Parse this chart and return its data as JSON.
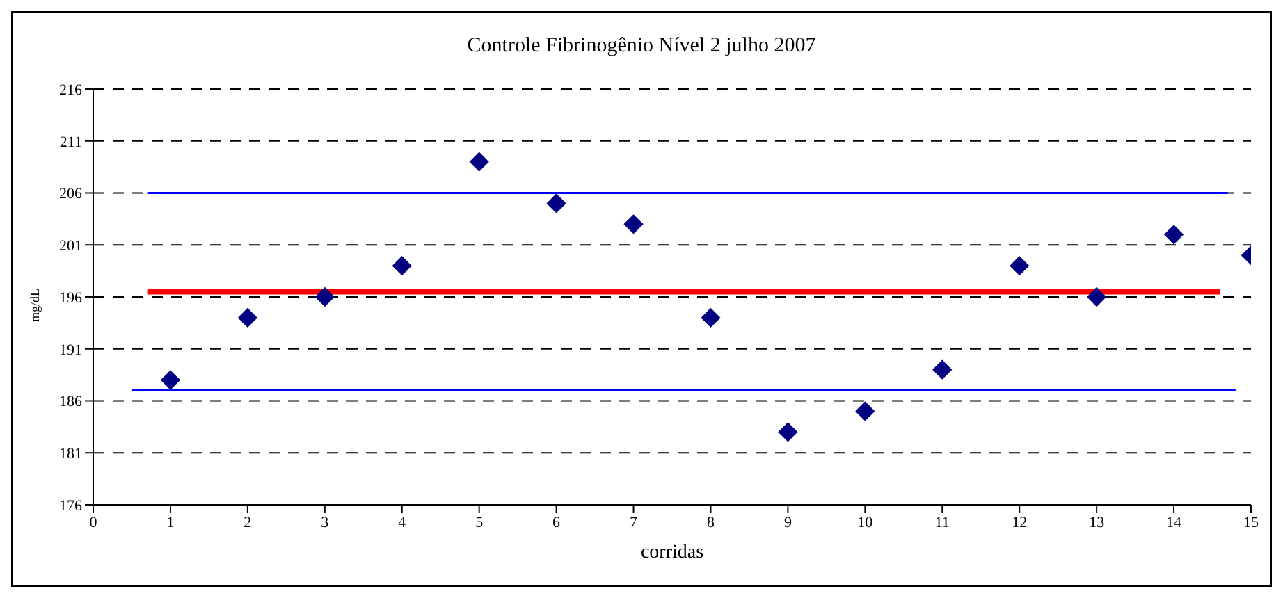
{
  "chart_data": {
    "type": "scatter",
    "title": "Controle Fibrinogênio Nível 2 julho 2007",
    "xlabel": "corridas",
    "ylabel": "mg/dL",
    "xlim": [
      0,
      15
    ],
    "xticks": [
      0,
      1,
      2,
      3,
      4,
      5,
      6,
      7,
      8,
      9,
      10,
      11,
      12,
      13,
      14,
      15
    ],
    "ylim": [
      176,
      216
    ],
    "yticks": [
      176,
      181,
      186,
      191,
      196,
      201,
      206,
      211,
      216
    ],
    "grid": "y",
    "marker": "diamond",
    "series": [
      {
        "color": "#000080",
        "x": [
          1,
          2,
          3,
          4,
          5,
          6,
          7,
          8,
          9,
          10,
          11,
          12,
          13,
          14,
          15
        ],
        "values": [
          188,
          194,
          196,
          199,
          209,
          205,
          203,
          194,
          183,
          185,
          189,
          199,
          196,
          202,
          200
        ]
      },
      {
        "type": "line",
        "color": "#ff0000",
        "marker": "none",
        "x": [
          0.7,
          14.6
        ],
        "values": [
          196.5,
          196.5
        ]
      },
      {
        "type": "line",
        "color": "#0000ff",
        "marker": "none",
        "x": [
          0.7,
          14.7
        ],
        "values": [
          206,
          206
        ]
      },
      {
        "type": "line",
        "color": "#0000ff",
        "marker": "none",
        "x": [
          0.5,
          14.8
        ],
        "values": [
          187,
          187
        ]
      }
    ]
  }
}
